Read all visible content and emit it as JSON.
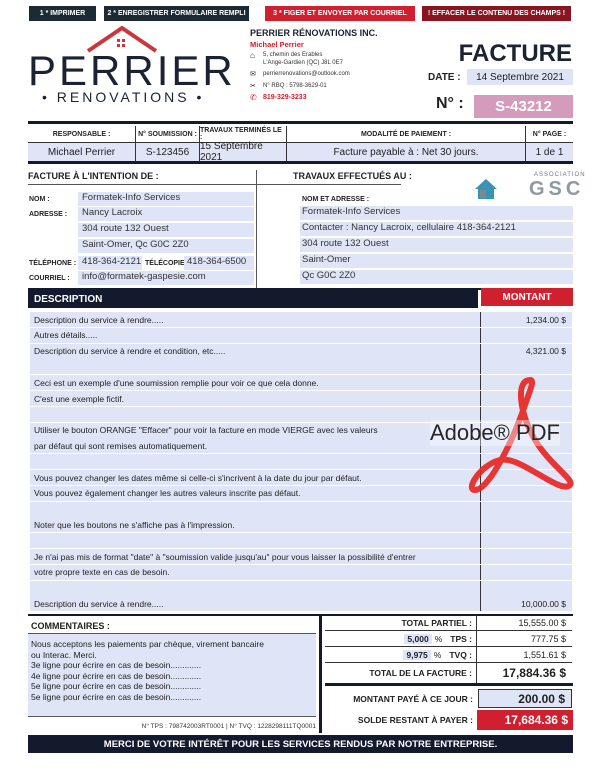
{
  "buttons": {
    "print": "1 * IMPRIMER",
    "save": "2 * ENREGISTRER FORMULAIRE REMPLI",
    "send": "3 * FIGER ET ENVOYER PAR COURRIEL",
    "clear": "! EFFACER LE CONTENU DES CHAMPS !"
  },
  "logo": {
    "name": "PERRIER",
    "sub": "• RENOVATIONS •"
  },
  "company": {
    "name": "PERRIER RÉNOVATIONS INC.",
    "contact": "Michael Perrier",
    "address1": "5, chemin des Erables",
    "address2": "L'Ange-Gardien (QC)  J8L 0E7",
    "email": "perrierrenovations@outlook.com",
    "rbq": "N° RBQ : 5798-3629-01",
    "phone": "819-329-3233"
  },
  "invoice": {
    "title": "FACTURE",
    "date_label": "DATE :",
    "date": "14 Septembre 2021",
    "number_label": "N° :",
    "number": "S-43212"
  },
  "info": {
    "headers": [
      "RESPONSABLE :",
      "N° SOUMISSION :",
      "TRAVAUX TERMINÉS LE :",
      "MODALITÉ DE PAIEMENT :",
      "N° PAGE :"
    ],
    "values": [
      "Michael Perrier",
      "S-123456",
      "15 Septembre 2021",
      "Facture payable à : Net 30 jours.",
      "1 de 1"
    ]
  },
  "billto": {
    "title": "FACTURE À L'INTENTION DE :",
    "nom_label": "NOM :",
    "nom": "Formatek-Info Services",
    "adresse_label": "ADRESSE :",
    "adresse": [
      "Nancy Lacroix",
      "304 route 132 Ouest",
      "Saint-Omer, Qc  G0C 2Z0"
    ],
    "tel_label": "TÉLÉPHONE :",
    "tel": "418-364-2121",
    "fax_label": "TÉLÉCOPIE :",
    "fax": "418-364-6500",
    "email_label": "COURRIEL :",
    "email": "info@formatek-gaspesie.com"
  },
  "worksite": {
    "title": "TRAVAUX EFFECTUÉS AU :",
    "label": "NOM ET ADRESSE :",
    "lines": [
      "Formatek-Info Services",
      "Contacter : Nancy Lacroix, cellulaire 418-364-2121",
      "304 route 132 Ouest",
      "Saint-Omer",
      "Qc  G0C 2Z0"
    ]
  },
  "gsc": {
    "top": "ASSOCIATION",
    "name": "GSC"
  },
  "items": {
    "desc_header": "DESCRIPTION",
    "amount_header": "MONTANT",
    "rows": [
      {
        "d": "Description du service à rendre.....",
        "a": "1,234.00 $"
      },
      {
        "d": "Autres détails.....",
        "a": ""
      },
      {
        "d": "Description du service à rendre et condition, etc.....",
        "a": "4,321.00 $"
      },
      {
        "d": "",
        "a": ""
      },
      {
        "d": "Ceci est un exemple d'une soumission remplie pour voir ce que cela donne.",
        "a": ""
      },
      {
        "d": "C'est une exemple fictif.",
        "a": ""
      },
      {
        "d": "",
        "a": ""
      },
      {
        "d": "Utiliser le bouton ORANGE \"Effacer\" pour voir la facture en mode VIERGE avec les valeurs",
        "a": ""
      },
      {
        "d": "par défaut qui sont remises automatiquement.",
        "a": ""
      },
      {
        "d": "",
        "a": ""
      },
      {
        "d": "Vous pouvez changer les dates même si celle-ci s'incrivent à la date du jour par défaut.",
        "a": ""
      },
      {
        "d": "Vous pouvez également changer les autres valeurs inscrite pas défaut.",
        "a": ""
      },
      {
        "d": "",
        "a": ""
      },
      {
        "d": "Noter que les boutons ne s'affiche pas à l'impression.",
        "a": ""
      },
      {
        "d": "",
        "a": ""
      },
      {
        "d": "Je n'ai pas mis de format \"date\" à \"soumission valide jusqu'au\" pour vous laisser la possibilité d'entrer",
        "a": ""
      },
      {
        "d": "votre propre texte en cas de besoin.",
        "a": ""
      },
      {
        "d": "",
        "a": ""
      },
      {
        "d": "Description du service à rendre.....",
        "a": "10,000.00 $"
      }
    ]
  },
  "comments": {
    "title": "COMMENTAIRES :",
    "lines": [
      "Nous acceptons les paiements par chèque, virement bancaire",
      "ou Interac. Merci.",
      "3e ligne pour écrire en cas de besoin.............",
      "4e ligne pour écrire en cas de besoin.............",
      "5e ligne pour écrire en cas de besoin.............",
      "5e ligne pour écrire en cas de besoin............."
    ],
    "tax_numbers": "N° TPS : 798742003RT0001 | N° TVQ : 1228298111TQ0001"
  },
  "totals": {
    "subtotal_label": "TOTAL PARTIEL :",
    "subtotal": "15,555.00 $",
    "tps_rate": "5,000",
    "tps_label": "TPS :",
    "tps": "777.75 $",
    "tvq_rate": "9,975",
    "tvq_label": "TVQ :",
    "tvq": "1,551.61 $",
    "pct": "%",
    "total_label": "TOTAL DE LA FACTURE :",
    "total": "17,884.36 $",
    "paid_label": "MONTANT PAYÉ À CE JOUR :",
    "paid": "200.00 $",
    "balance_label": "SOLDE RESTANT À PAYER :",
    "balance": "17,684.36 $"
  },
  "footer": "MERCI DE VOTRE INTÉRÊT POUR LES SERVICES RENDUS PAR NOTRE ENTREPRISE.",
  "watermark": "Adobe® PDF",
  "colors": {
    "navy": "#141a2e",
    "red": "#d0202f",
    "darkred": "#8a1520",
    "fill": "#dfe5f7",
    "pink": "#d59bbd"
  }
}
